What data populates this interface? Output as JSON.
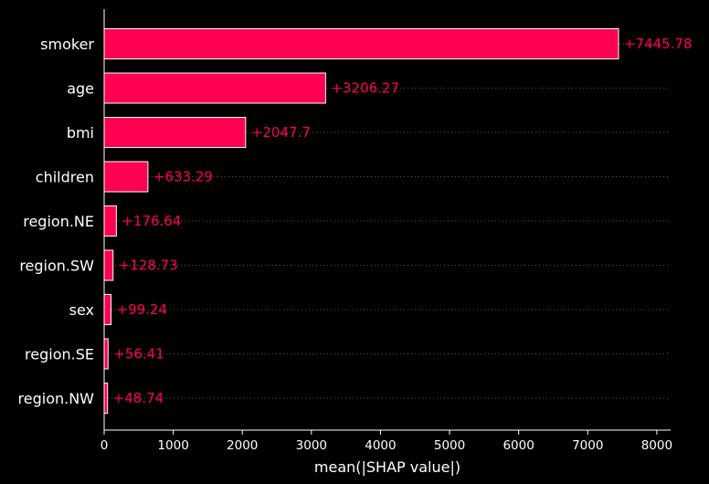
{
  "colors": {
    "background": "#000000",
    "bar": "#ff0052",
    "bar_edge": "#ffffff",
    "value_label": "#ff0052",
    "text": "#ffffff",
    "grid": "#555555"
  },
  "chart_data": {
    "type": "bar",
    "orientation": "horizontal",
    "categories": [
      "smoker",
      "age",
      "bmi",
      "children",
      "region.NE",
      "region.SW",
      "sex",
      "region.SE",
      "region.NW"
    ],
    "values": [
      7445.78,
      3206.27,
      2047.7,
      633.29,
      176.64,
      128.73,
      99.24,
      56.41,
      48.74
    ],
    "value_labels": [
      "+7445.78",
      "+3206.27",
      "+2047.7",
      "+633.29",
      "+176.64",
      "+128.73",
      "+99.24",
      "+56.41",
      "+48.74"
    ],
    "xlabel": "mean(|SHAP value|)",
    "ylabel": "",
    "xlim": [
      0,
      8200
    ],
    "xticks": [
      0,
      1000,
      2000,
      3000,
      4000,
      5000,
      6000,
      7000,
      8000
    ],
    "xtick_labels": [
      "0",
      "1000",
      "2000",
      "3000",
      "4000",
      "5000",
      "6000",
      "7000",
      "8000"
    ],
    "grid": "dotted horizontal row guides",
    "legend": "none"
  }
}
